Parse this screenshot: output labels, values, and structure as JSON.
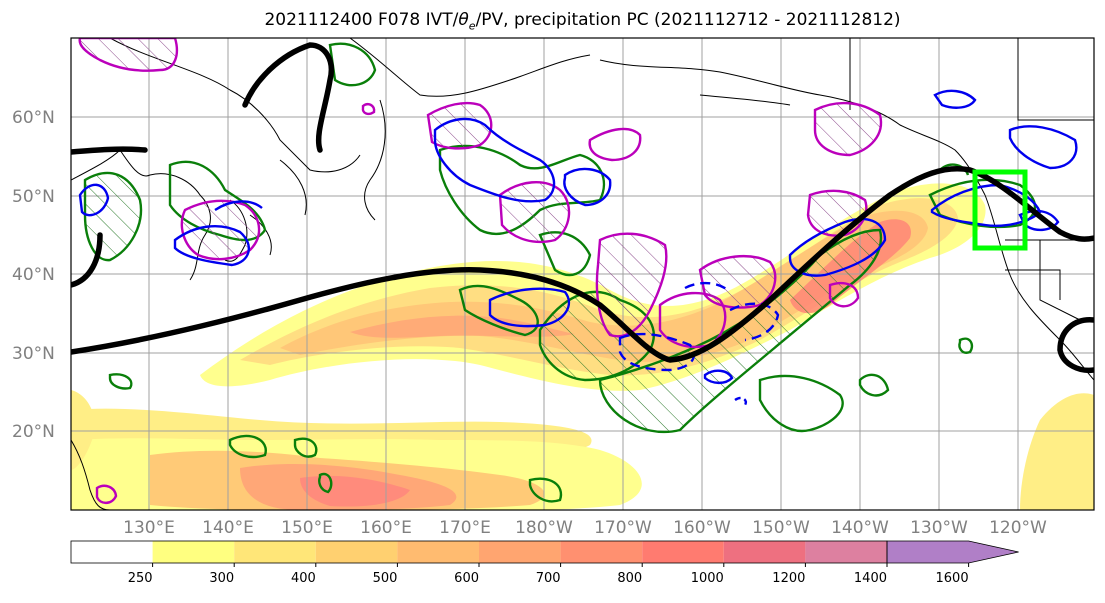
{
  "title": {
    "prefix": "2021112400 F078 IVT/",
    "theta": "θ",
    "theta_sub": "e",
    "suffix": "/PV, precipitation PC (2021112712 - 2021112812)"
  },
  "map": {
    "lat_labels": [
      "60°N",
      "50°N",
      "40°N",
      "30°N",
      "20°N"
    ],
    "lon_labels": [
      "130°E",
      "140°E",
      "150°E",
      "160°E",
      "170°E",
      "180°W",
      "170°W",
      "160°W",
      "150°W",
      "140°W",
      "130°W",
      "120°W"
    ],
    "colors": {
      "jet_contour": "#000000",
      "pv_contour": "#0000ee",
      "theta_contour": "#008000",
      "precip_contour": "#bb00bb",
      "target_box": "#00ff00",
      "grid": "#a0a0a0"
    }
  },
  "colorbar": {
    "ticks": [
      "250",
      "300",
      "400",
      "500",
      "600",
      "700",
      "800",
      "1000",
      "1200",
      "1400",
      "1600"
    ],
    "colors": [
      "#ffffff",
      "#ffff80",
      "#ffe678",
      "#ffd070",
      "#ffbb70",
      "#ffa570",
      "#ff9070",
      "#ff7b70",
      "#ee7080",
      "#dd80a0",
      "#b07fc7"
    ]
  }
}
